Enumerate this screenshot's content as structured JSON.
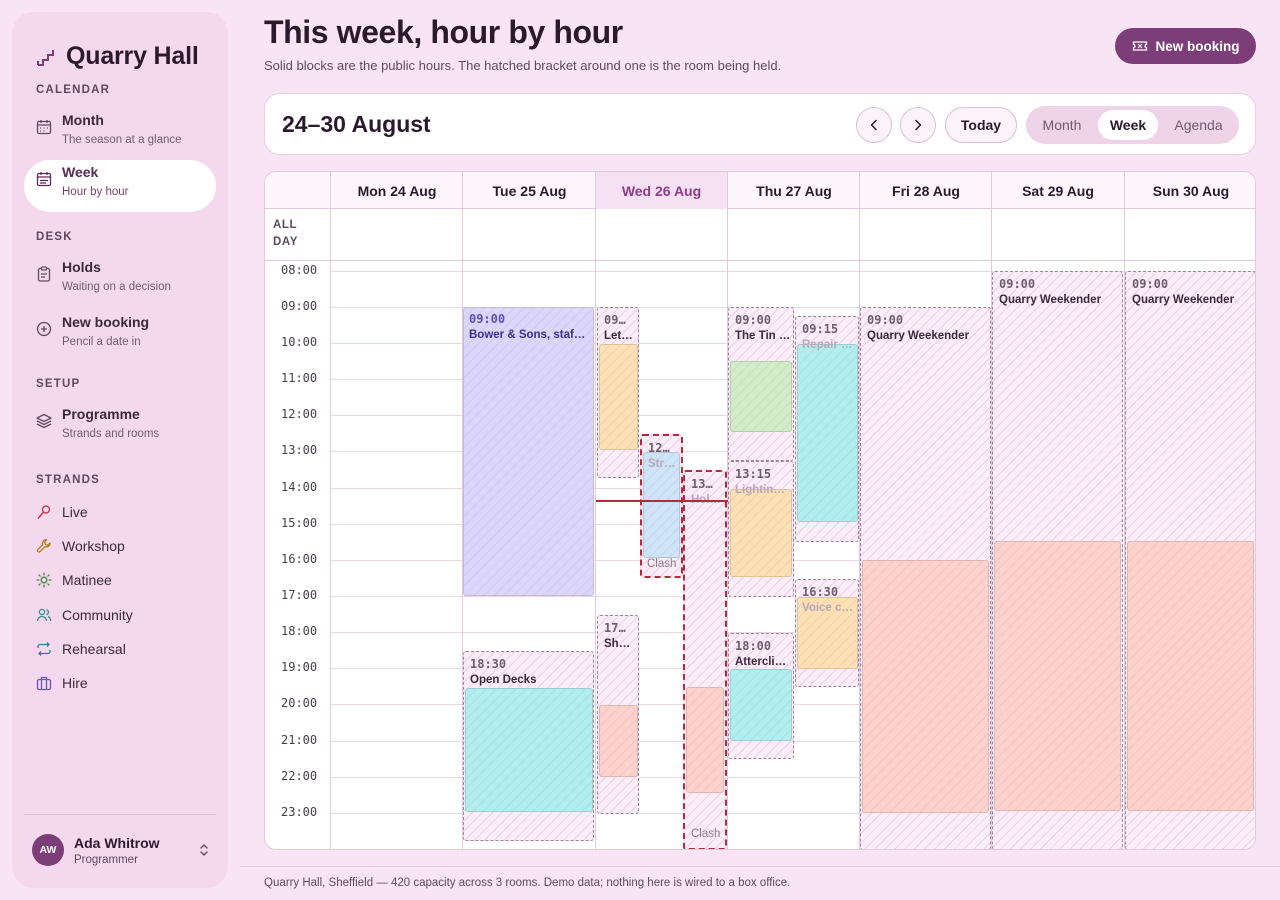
{
  "brand": {
    "name": "Quarry Hall"
  },
  "sidebar": {
    "sections": {
      "calendar": "CALENDAR",
      "desk": "DESK",
      "setup": "SETUP",
      "strands": "STRANDS"
    },
    "items": [
      {
        "title": "Month",
        "sub": "The season at a glance",
        "icon": "calendar-icon"
      },
      {
        "title": "Week",
        "sub": "Hour by hour",
        "icon": "calendar-week-icon",
        "active": true
      },
      {
        "title": "Holds",
        "sub": "Waiting on a decision",
        "icon": "clipboard-icon"
      },
      {
        "title": "New booking",
        "sub": "Pencil a date in",
        "icon": "plus-circle-icon"
      },
      {
        "title": "Programme",
        "sub": "Strands and rooms",
        "icon": "layers-icon"
      }
    ],
    "strands": [
      {
        "name": "Live",
        "icon": "microphone-icon",
        "color": "#c2414a"
      },
      {
        "name": "Workshop",
        "icon": "wrench-icon",
        "color": "#b07a18"
      },
      {
        "name": "Matinee",
        "icon": "sun-icon",
        "color": "#3f8a3a"
      },
      {
        "name": "Community",
        "icon": "people-icon",
        "color": "#2f8f8a"
      },
      {
        "name": "Rehearsal",
        "icon": "repeat-icon",
        "color": "#2a7f9a"
      },
      {
        "name": "Hire",
        "icon": "briefcase-icon",
        "color": "#6b55c4"
      }
    ]
  },
  "user": {
    "initials": "AW",
    "name": "Ada Whitrow",
    "role": "Programmer"
  },
  "header": {
    "title": "This week, hour by hour",
    "subtitle": "Solid blocks are the public hours. The hatched bracket around one is the room being held.",
    "new_booking": "New booking"
  },
  "toolbar": {
    "range": "24–30 August",
    "today": "Today",
    "views": [
      "Month",
      "Week",
      "Agenda"
    ],
    "active_view": "Week"
  },
  "calendar": {
    "days": [
      "Mon 24 Aug",
      "Tue 25 Aug",
      "Wed 26 Aug",
      "Thu 27 Aug",
      "Fri 28 Aug",
      "Sat 29 Aug",
      "Sun 30 Aug"
    ],
    "today_index": 2,
    "allday_label": "ALL DAY",
    "hours": [
      "08:00",
      "09:00",
      "10:00",
      "11:00",
      "12:00",
      "13:00",
      "14:00",
      "15:00",
      "16:00",
      "17:00",
      "18:00",
      "19:00",
      "20:00",
      "21:00",
      "22:00",
      "23:00"
    ],
    "clash_label": "Clash",
    "events": [
      {
        "time": "09:00",
        "title": "Bower & Sons, staff…"
      },
      {
        "time": "18:30",
        "title": "Open Decks"
      },
      {
        "time": "09…",
        "title": "Let…"
      },
      {
        "time": "12…",
        "title": "Stri…"
      },
      {
        "time": "13…",
        "title": "Hol…"
      },
      {
        "time": "17…",
        "title": "She…"
      },
      {
        "time": "09:00",
        "title": "The Tin …"
      },
      {
        "time": "09:15",
        "title": "Repair …"
      },
      {
        "time": "13:15",
        "title": "Lightin…"
      },
      {
        "time": "16:30",
        "title": "Voice cl…"
      },
      {
        "time": "18:00",
        "title": "Attercli…"
      },
      {
        "time": "09:00",
        "title": "Quarry Weekender"
      },
      {
        "time": "09:00",
        "title": "Quarry Weekender"
      },
      {
        "time": "09:00",
        "title": "Quarry Weekender"
      }
    ],
    "colors": {
      "purple": "#dcd6fb",
      "teal": "#b2eeee",
      "orange": "#fde0b5",
      "green": "#d2ecc7",
      "blue": "#cfe4f8",
      "salmon": "#fdd2cc"
    }
  },
  "footer": {
    "text": "Quarry Hall, Sheffield — 420 capacity across 3 rooms. Demo data; nothing here is wired to a box office."
  }
}
